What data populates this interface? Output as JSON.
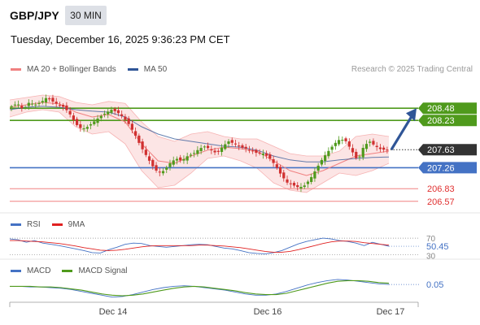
{
  "header": {
    "symbol": "GBP/JPY",
    "timeframe": "30 MIN",
    "datetime": "Tuesday, December 16, 2025 9:36:23 PM CET"
  },
  "legend": {
    "ma_bb": {
      "label": "MA 20 + Bollinger Bands",
      "color": "#f08080"
    },
    "ma50": {
      "label": "MA 50",
      "color": "#2f5597"
    },
    "rsi": {
      "label": "RSI",
      "color": "#4472c4"
    },
    "rsi_ma": {
      "label": "9MA",
      "color": "#e02020"
    },
    "macd": {
      "label": "MACD",
      "color": "#4472c4"
    },
    "macd_signal": {
      "label": "MACD Signal",
      "color": "#4f9a1c"
    }
  },
  "research_credit": "Research © 2025 Trading Central",
  "colors": {
    "resistance": "#4f9a1c",
    "pivot": "#4472c4",
    "support": "#f08080",
    "up_candle": "#4f9a1c",
    "down_candle": "#d03030",
    "current_price_bg": "#333333",
    "forecast_arrow": "#2f5597",
    "bollinger_fill": "#fbe0e0"
  },
  "chart_data": [
    {
      "type": "candlestick",
      "title": "GBP/JPY 30 MIN",
      "x_ticks": [
        "Dec 14",
        "Dec 16",
        "Dec 17"
      ],
      "ylim": [
        206.45,
        209.0
      ],
      "price_labels": [
        {
          "value": 208.48,
          "label": "208.48",
          "kind": "resistance"
        },
        {
          "value": 208.23,
          "label": "208.23",
          "kind": "resistance"
        },
        {
          "value": 207.63,
          "label": "207.63",
          "kind": "current"
        },
        {
          "value": 207.26,
          "label": "207.26",
          "kind": "pivot"
        },
        {
          "value": 206.83,
          "label": "206.83",
          "kind": "support"
        },
        {
          "value": 206.57,
          "label": "206.57",
          "kind": "support"
        }
      ],
      "close_anchors": [
        208.52,
        208.58,
        208.45,
        208.6,
        208.55,
        208.6,
        208.7,
        208.62,
        208.55,
        208.5,
        208.35,
        208.15,
        208.05,
        208.1,
        208.2,
        208.3,
        208.38,
        208.45,
        208.4,
        208.3,
        208.15,
        207.95,
        207.7,
        207.5,
        207.3,
        207.15,
        207.2,
        207.35,
        207.45,
        207.4,
        207.5,
        207.55,
        207.65,
        207.7,
        207.62,
        207.55,
        207.7,
        207.8,
        207.75,
        207.68,
        207.65,
        207.6,
        207.55,
        207.55,
        207.45,
        207.3,
        207.1,
        206.95,
        206.9,
        206.85,
        206.9,
        207.05,
        207.25,
        207.45,
        207.6,
        207.75,
        207.85,
        207.8,
        207.6,
        207.4,
        207.7,
        207.8,
        207.7,
        207.63,
        207.63
      ],
      "bollinger_upper": [
        208.65,
        208.7,
        208.75,
        208.72,
        208.6,
        208.55,
        208.62,
        208.58,
        208.2,
        207.9,
        207.8,
        207.95,
        208.0,
        207.9,
        207.85,
        207.85,
        207.7,
        207.55,
        207.5,
        207.5,
        207.6,
        207.9,
        207.95,
        207.9
      ],
      "bollinger_lower": [
        208.3,
        208.4,
        208.45,
        208.4,
        208.1,
        207.95,
        208.0,
        207.75,
        207.2,
        206.85,
        206.9,
        207.15,
        207.45,
        207.5,
        207.4,
        207.25,
        206.95,
        206.8,
        206.75,
        206.95,
        207.15,
        207.1,
        207.2,
        207.35
      ],
      "ma20": [
        208.5,
        208.55,
        208.6,
        208.57,
        208.4,
        208.3,
        208.35,
        208.2,
        207.75,
        207.4,
        207.35,
        207.5,
        207.62,
        207.68,
        207.65,
        207.6,
        207.4,
        207.2,
        207.1,
        207.2,
        207.35,
        207.5,
        207.55,
        207.6
      ],
      "ma50": [
        208.45,
        208.5,
        208.52,
        208.5,
        208.45,
        208.42,
        208.4,
        208.3,
        208.1,
        207.95,
        207.85,
        207.8,
        207.75,
        207.7,
        207.68,
        207.62,
        207.5,
        207.42,
        207.38,
        207.38,
        207.42,
        207.45,
        207.47,
        207.48
      ]
    },
    {
      "type": "line",
      "title": "RSI",
      "ylim": [
        25,
        80
      ],
      "reference_lines": [
        70,
        30
      ],
      "tick_labels": [
        "70",
        "50.45",
        "30"
      ],
      "series": [
        {
          "name": "RSI",
          "values": [
            68,
            66,
            60,
            64,
            58,
            55,
            52,
            48,
            44,
            40,
            35,
            34,
            42,
            48,
            55,
            58,
            57,
            52,
            50,
            48,
            50,
            52,
            54,
            55,
            54,
            50,
            46,
            44,
            40,
            35,
            33,
            32,
            35,
            40,
            48,
            56,
            62,
            66,
            70,
            68,
            64,
            62,
            58,
            52,
            60,
            55,
            50.45
          ]
        },
        {
          "name": "9MA",
          "values": [
            64,
            64,
            63,
            62,
            61,
            59,
            57,
            54,
            51,
            47,
            44,
            41,
            40,
            41,
            43,
            46,
            49,
            51,
            52,
            52,
            52,
            52,
            52,
            53,
            53,
            52,
            51,
            49,
            47,
            44,
            41,
            38,
            36,
            36,
            38,
            42,
            47,
            52,
            57,
            61,
            63,
            63,
            62,
            59,
            57,
            55,
            53
          ]
        }
      ]
    },
    {
      "type": "line",
      "title": "MACD",
      "tick_labels": [
        "0.05"
      ],
      "series": [
        {
          "name": "MACD",
          "values": [
            0.02,
            0.02,
            0.01,
            0.01,
            0.0,
            -0.01,
            -0.03,
            -0.06,
            -0.09,
            -0.12,
            -0.15,
            -0.14,
            -0.11,
            -0.07,
            -0.03,
            0.0,
            0.02,
            0.03,
            0.02,
            0.0,
            -0.02,
            -0.04,
            -0.07,
            -0.1,
            -0.12,
            -0.12,
            -0.1,
            -0.06,
            -0.01,
            0.04,
            0.08,
            0.11,
            0.13,
            0.12,
            0.1,
            0.08,
            0.06,
            0.05
          ]
        },
        {
          "name": "MACD Signal",
          "values": [
            0.02,
            0.02,
            0.02,
            0.01,
            0.01,
            0.0,
            -0.02,
            -0.04,
            -0.07,
            -0.1,
            -0.12,
            -0.13,
            -0.12,
            -0.1,
            -0.07,
            -0.04,
            -0.01,
            0.01,
            0.02,
            0.01,
            -0.01,
            -0.03,
            -0.05,
            -0.08,
            -0.1,
            -0.11,
            -0.11,
            -0.09,
            -0.05,
            -0.01,
            0.03,
            0.07,
            0.1,
            0.11,
            0.11,
            0.1,
            0.08,
            0.07
          ]
        }
      ]
    }
  ]
}
